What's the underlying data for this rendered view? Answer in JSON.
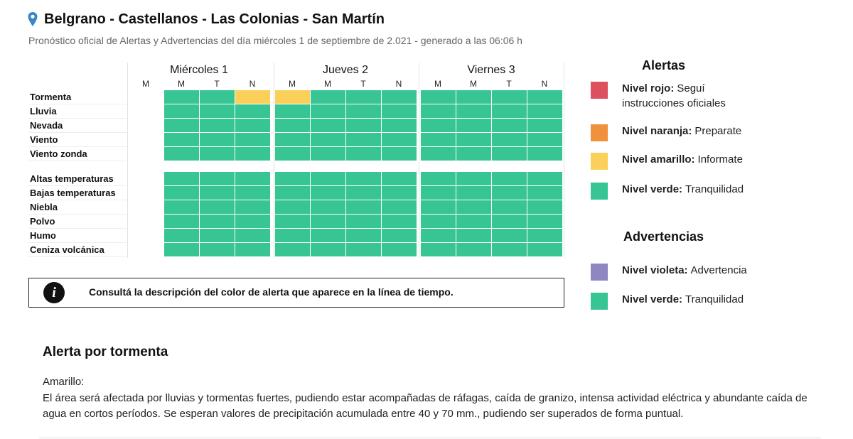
{
  "header": {
    "title": "Belgrano - Castellanos - Las Colonias - San Martín",
    "subtitle": "Pronóstico oficial de Alertas y Advertencias del día miércoles 1 de septiembre de 2.021 - generado a las 06:06 h"
  },
  "colors": {
    "verde": "#37c593",
    "amarillo": "#fad05a"
  },
  "days": [
    {
      "name": "Miércoles 1",
      "periods": [
        "M",
        "M",
        "T",
        "N"
      ]
    },
    {
      "name": "Jueves 2",
      "periods": [
        "M",
        "M",
        "T",
        "N"
      ]
    },
    {
      "name": "Viernes 3",
      "periods": [
        "M",
        "M",
        "T",
        "N"
      ]
    }
  ],
  "groups": [
    [
      {
        "name": "Tormenta",
        "cells": [
          null,
          "verde",
          "verde",
          "amarillo",
          "amarillo",
          "verde",
          "verde",
          "verde",
          "verde",
          "verde",
          "verde",
          "verde"
        ]
      },
      {
        "name": "Lluvia",
        "cells": [
          null,
          "verde",
          "verde",
          "verde",
          "verde",
          "verde",
          "verde",
          "verde",
          "verde",
          "verde",
          "verde",
          "verde"
        ]
      },
      {
        "name": "Nevada",
        "cells": [
          null,
          "verde",
          "verde",
          "verde",
          "verde",
          "verde",
          "verde",
          "verde",
          "verde",
          "verde",
          "verde",
          "verde"
        ]
      },
      {
        "name": "Viento",
        "cells": [
          null,
          "verde",
          "verde",
          "verde",
          "verde",
          "verde",
          "verde",
          "verde",
          "verde",
          "verde",
          "verde",
          "verde"
        ]
      },
      {
        "name": "Viento zonda",
        "cells": [
          null,
          "verde",
          "verde",
          "verde",
          "verde",
          "verde",
          "verde",
          "verde",
          "verde",
          "verde",
          "verde",
          "verde"
        ]
      }
    ],
    [
      {
        "name": "Altas temperaturas",
        "cells": [
          null,
          "verde",
          "verde",
          "verde",
          "verde",
          "verde",
          "verde",
          "verde",
          "verde",
          "verde",
          "verde",
          "verde"
        ]
      },
      {
        "name": "Bajas temperaturas",
        "cells": [
          null,
          "verde",
          "verde",
          "verde",
          "verde",
          "verde",
          "verde",
          "verde",
          "verde",
          "verde",
          "verde",
          "verde"
        ]
      },
      {
        "name": "Niebla",
        "cells": [
          null,
          "verde",
          "verde",
          "verde",
          "verde",
          "verde",
          "verde",
          "verde",
          "verde",
          "verde",
          "verde",
          "verde"
        ]
      },
      {
        "name": "Polvo",
        "cells": [
          null,
          "verde",
          "verde",
          "verde",
          "verde",
          "verde",
          "verde",
          "verde",
          "verde",
          "verde",
          "verde",
          "verde"
        ]
      },
      {
        "name": "Humo",
        "cells": [
          null,
          "verde",
          "verde",
          "verde",
          "verde",
          "verde",
          "verde",
          "verde",
          "verde",
          "verde",
          "verde",
          "verde"
        ]
      },
      {
        "name": "Ceniza volcánica",
        "cells": [
          null,
          "verde",
          "verde",
          "verde",
          "verde",
          "verde",
          "verde",
          "verde",
          "verde",
          "verde",
          "verde",
          "verde"
        ]
      }
    ]
  ],
  "info": "Consultá la descripción del color de alerta que aparece en la línea de tiempo.",
  "legend": [
    {
      "title": "Alertas",
      "items": [
        {
          "label": "Nivel rojo:",
          "text": "Seguí instrucciones oficiales",
          "color": "#dc5060"
        },
        {
          "label": "Nivel naranja:",
          "text": "Preparate",
          "color": "#f0913d"
        },
        {
          "label": "Nivel amarillo:",
          "text": "Informate",
          "color": "#fad05a"
        },
        {
          "label": "Nivel verde:",
          "text": "Tranquilidad",
          "color": "#37c593"
        }
      ]
    },
    {
      "title": "Advertencias",
      "items": [
        {
          "label": "Nivel violeta:",
          "text": "Advertencia",
          "color": "#8e87c3"
        },
        {
          "label": "Nivel verde:",
          "text": "Tranquilidad",
          "color": "#37c593"
        }
      ]
    }
  ],
  "detail": {
    "title": "Alerta por tormenta",
    "level": "Amarillo:",
    "text": "El área será afectada por lluvias y tormentas fuertes, pudiendo estar acompañadas de ráfagas, caída de granizo, intensa actividad eléctrica y abundante caída de agua en cortos períodos. Se esperan valores de precipitación acumulada entre 40 y 70 mm., pudiendo ser superados de forma puntual."
  }
}
